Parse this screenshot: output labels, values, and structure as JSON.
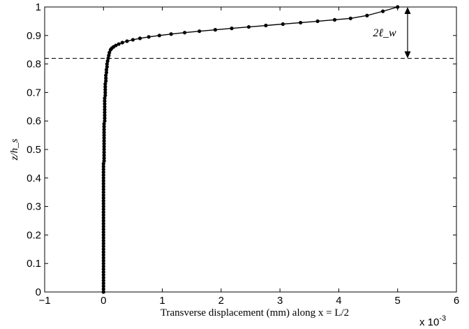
{
  "chart_data": {
    "type": "line",
    "xlabel": "Transverse displacement (mm) along x = L/2",
    "ylabel": "z/h_s",
    "x_multiplier_label": "x 10",
    "x_multiplier_exponent": "-3",
    "xlim": [
      -1,
      6
    ],
    "ylim": [
      0,
      1
    ],
    "x_ticks": [
      -1,
      0,
      1,
      2,
      3,
      4,
      5,
      6
    ],
    "y_ticks": [
      0,
      0.1,
      0.2,
      0.3,
      0.4,
      0.5,
      0.6,
      0.7,
      0.8,
      0.9,
      1
    ],
    "grid": false,
    "series": [
      {
        "x": [
          0.0,
          0.0,
          0.0,
          0.0,
          0.0,
          0.0,
          0.0,
          0.0,
          0.0,
          0.0,
          0.0,
          0.0,
          0.0,
          0.0,
          0.0,
          0.0,
          0.0,
          0.0,
          0.0,
          0.0,
          0.0,
          0.0,
          0.0,
          0.0,
          0.0,
          0.0,
          0.0,
          0.0,
          0.0,
          0.0,
          0.0,
          0.0,
          0.0,
          0.0,
          0.0,
          0.0,
          0.0,
          0.0,
          0.0,
          0.0,
          0.0,
          0.0,
          0.0,
          0.0,
          0.0,
          0.0,
          0.01,
          0.01,
          0.01,
          0.01,
          0.01,
          0.01,
          0.01,
          0.01,
          0.01,
          0.01,
          0.01,
          0.01,
          0.01,
          0.01,
          0.02,
          0.02,
          0.02,
          0.02,
          0.02,
          0.02,
          0.02,
          0.02,
          0.02,
          0.03,
          0.03,
          0.03,
          0.03,
          0.03,
          0.04,
          0.04,
          0.04,
          0.05,
          0.05,
          0.06,
          0.06,
          0.07,
          0.08,
          0.09,
          0.1,
          0.12,
          0.14,
          0.17,
          0.21,
          0.26,
          0.32,
          0.4,
          0.5,
          0.62,
          0.77,
          0.95,
          1.15,
          1.38,
          1.63,
          1.9,
          2.18,
          2.47,
          2.76,
          3.05,
          3.35,
          3.64,
          3.93,
          4.2,
          4.48,
          4.75,
          5.0
        ],
        "y": [
          0.0,
          0.01,
          0.02,
          0.03,
          0.04,
          0.05,
          0.06,
          0.07,
          0.08,
          0.09,
          0.1,
          0.11,
          0.12,
          0.13,
          0.14,
          0.15,
          0.16,
          0.17,
          0.18,
          0.19,
          0.2,
          0.21,
          0.22,
          0.23,
          0.24,
          0.25,
          0.26,
          0.27,
          0.28,
          0.29,
          0.3,
          0.31,
          0.32,
          0.33,
          0.34,
          0.35,
          0.36,
          0.37,
          0.38,
          0.39,
          0.4,
          0.41,
          0.42,
          0.43,
          0.44,
          0.45,
          0.46,
          0.47,
          0.48,
          0.49,
          0.5,
          0.51,
          0.52,
          0.53,
          0.54,
          0.55,
          0.56,
          0.57,
          0.58,
          0.59,
          0.6,
          0.61,
          0.62,
          0.63,
          0.64,
          0.65,
          0.66,
          0.67,
          0.68,
          0.69,
          0.7,
          0.71,
          0.72,
          0.73,
          0.74,
          0.75,
          0.76,
          0.77,
          0.78,
          0.79,
          0.8,
          0.81,
          0.82,
          0.83,
          0.84,
          0.85,
          0.855,
          0.86,
          0.865,
          0.87,
          0.875,
          0.88,
          0.885,
          0.89,
          0.895,
          0.9,
          0.905,
          0.91,
          0.915,
          0.92,
          0.925,
          0.93,
          0.935,
          0.94,
          0.945,
          0.95,
          0.955,
          0.96,
          0.97,
          0.985,
          1.0
        ],
        "color": "#000000"
      }
    ],
    "reference_line": {
      "y": 0.82,
      "style": "dashed",
      "color": "#000000"
    },
    "annotations": [
      {
        "text": "2ℓ_w",
        "y_from": 0.82,
        "y_to": 1.0,
        "type": "double-arrow"
      }
    ]
  }
}
